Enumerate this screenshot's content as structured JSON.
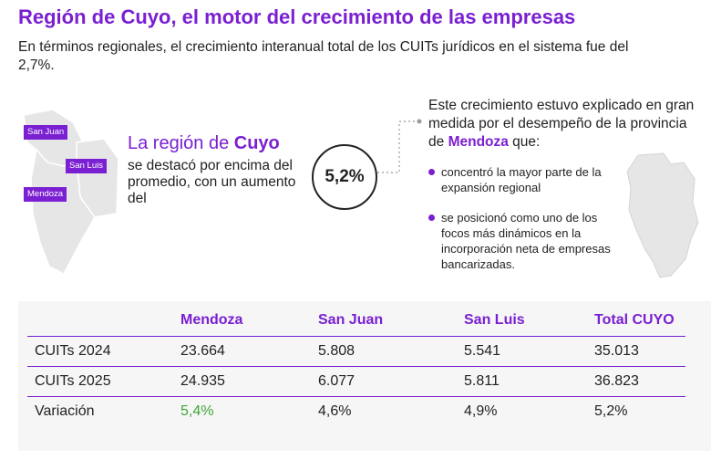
{
  "title": "Región de Cuyo, el motor del crecimiento de las empresas",
  "intro": "En términos regionales,  el crecimiento interanual total de los CUITs jurídicos en el sistema fue del 2,7%.",
  "map_labels": {
    "san_juan": "San Juan",
    "san_luis": "San Luis",
    "mendoza": "Mendoza"
  },
  "region": {
    "heading_prefix": "La región de ",
    "heading_name": "Cuyo",
    "body": "se destacó por encima del promedio, con un aumento del",
    "value": "5,2%"
  },
  "explain": {
    "prefix": "Este crecimiento estuvo explicado en gran medida por el desempeño de la provincia de ",
    "highlight": "Mendoza",
    "suffix": " que:"
  },
  "bullets": [
    "concentró la mayor parte de la expansión regional",
    "se posicionó como uno de los focos más dinámicos en la incorporación neta de empresas bancarizadas."
  ],
  "table": {
    "headers": [
      "",
      "Mendoza",
      "San Juan",
      "San Luis",
      "Total CUYO"
    ],
    "rows": [
      [
        "CUITs 2024",
        "23.664",
        "5.808",
        "5.541",
        "35.013"
      ],
      [
        "CUITs 2025",
        "24.935",
        "6.077",
        "5.811",
        "36.823"
      ],
      [
        "Variación",
        "5,4%",
        "4,6%",
        "4,9%",
        "5,2%"
      ]
    ]
  },
  "colors": {
    "accent": "#7a1fd1",
    "positive": "#3fa535",
    "map_fill": "#e6e6e6"
  }
}
